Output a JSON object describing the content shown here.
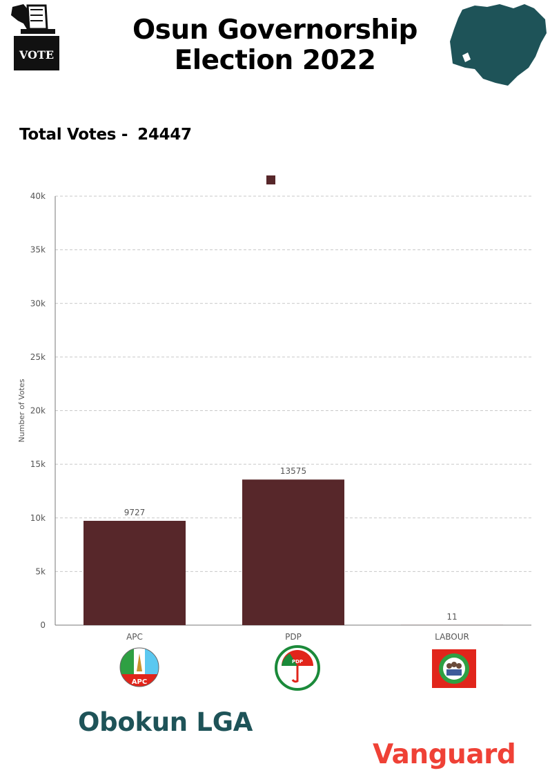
{
  "header": {
    "title_line1": "Osun Governorship",
    "title_line2": "Election 2022",
    "vote_label": "VOTE"
  },
  "total": {
    "label": "Total Votes -",
    "value": "24447"
  },
  "lga": "Obokun LGA",
  "brand": "Vanguard",
  "colors": {
    "bar": "#57272a",
    "lga_text": "#1e5358",
    "brand": "#ef4136",
    "map": "#1e5358"
  },
  "logos": [
    {
      "party": "APC",
      "label": "APC"
    },
    {
      "party": "PDP",
      "label": "PDP"
    },
    {
      "party": "LABOUR",
      "label": ""
    }
  ],
  "chart_data": {
    "type": "bar",
    "categories": [
      "APC",
      "PDP",
      "LABOUR"
    ],
    "values": [
      9727,
      13575,
      11
    ],
    "data_labels": [
      "9727",
      "13575",
      "11"
    ],
    "ylabel": "Number of Votes",
    "ylim": [
      0,
      40000
    ],
    "yticks": [
      0,
      5000,
      10000,
      15000,
      20000,
      25000,
      30000,
      35000,
      40000
    ],
    "ytick_labels": [
      "0",
      "5k",
      "10k",
      "15k",
      "20k",
      "25k",
      "30k",
      "35k",
      "40k"
    ],
    "grid": true,
    "legend": "top-center"
  }
}
